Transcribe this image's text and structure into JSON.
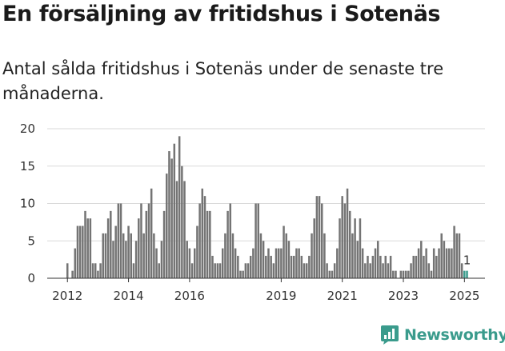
{
  "page": {
    "title": "En försäljning av fritidshus i Sotenäs",
    "subtitle": "Antal sålda fritidshus i Sotenäs under de senaste tre månaderna.",
    "brand": "Newsworthy"
  },
  "colors": {
    "bar": "#747474",
    "highlight": "#3a9b8c",
    "brand": "#3a9b8c"
  },
  "chart_data": {
    "type": "bar",
    "title": "",
    "xlabel": "",
    "ylabel": "",
    "ylim": [
      0,
      20
    ],
    "yticks": [
      0,
      5,
      10,
      15,
      20
    ],
    "xtick_labels": [
      "2012",
      "2014",
      "2016",
      "2019",
      "2021",
      "2023",
      "2025"
    ],
    "xtick_years": [
      2012,
      2014,
      2016,
      2019,
      2021,
      2023,
      2025
    ],
    "x_start": "2012-01",
    "x_step": "1 month",
    "grid": "horizontal",
    "series": [
      {
        "values": [
          2,
          0,
          1,
          4,
          7,
          7,
          7,
          9,
          8,
          8,
          2,
          2,
          1,
          2,
          6,
          6,
          8,
          9,
          5,
          7,
          10,
          10,
          6,
          5,
          7,
          6,
          2,
          5,
          8,
          10,
          6,
          9,
          10,
          12,
          6,
          4,
          2,
          5,
          9,
          14,
          17,
          16,
          18,
          13,
          19,
          15,
          13,
          5,
          4,
          2,
          4,
          7,
          10,
          12,
          11,
          9,
          9,
          3,
          2,
          2,
          2,
          4,
          6,
          9,
          10,
          6,
          4,
          3,
          1,
          1,
          2,
          2,
          3,
          4,
          10,
          10,
          6,
          5,
          3,
          4,
          3,
          2,
          4,
          4,
          4,
          7,
          6,
          5,
          3,
          3,
          4,
          4,
          3,
          2,
          2,
          3,
          6,
          8,
          11,
          11,
          10,
          6,
          2,
          1,
          1,
          2,
          4,
          8,
          11,
          10,
          12,
          9,
          6,
          8,
          5,
          8,
          4,
          2,
          3,
          2,
          3,
          4,
          5,
          3,
          2,
          3,
          2,
          3,
          1,
          1,
          0,
          1,
          1,
          1,
          1,
          2,
          3,
          3,
          4,
          5,
          3,
          4,
          2,
          1,
          4,
          3,
          4,
          6,
          5,
          4,
          4,
          4,
          7,
          6,
          6,
          2,
          1,
          1
        ],
        "highlight_last": 2
      }
    ],
    "annotations": [
      {
        "text": "1",
        "at": "last"
      }
    ]
  }
}
